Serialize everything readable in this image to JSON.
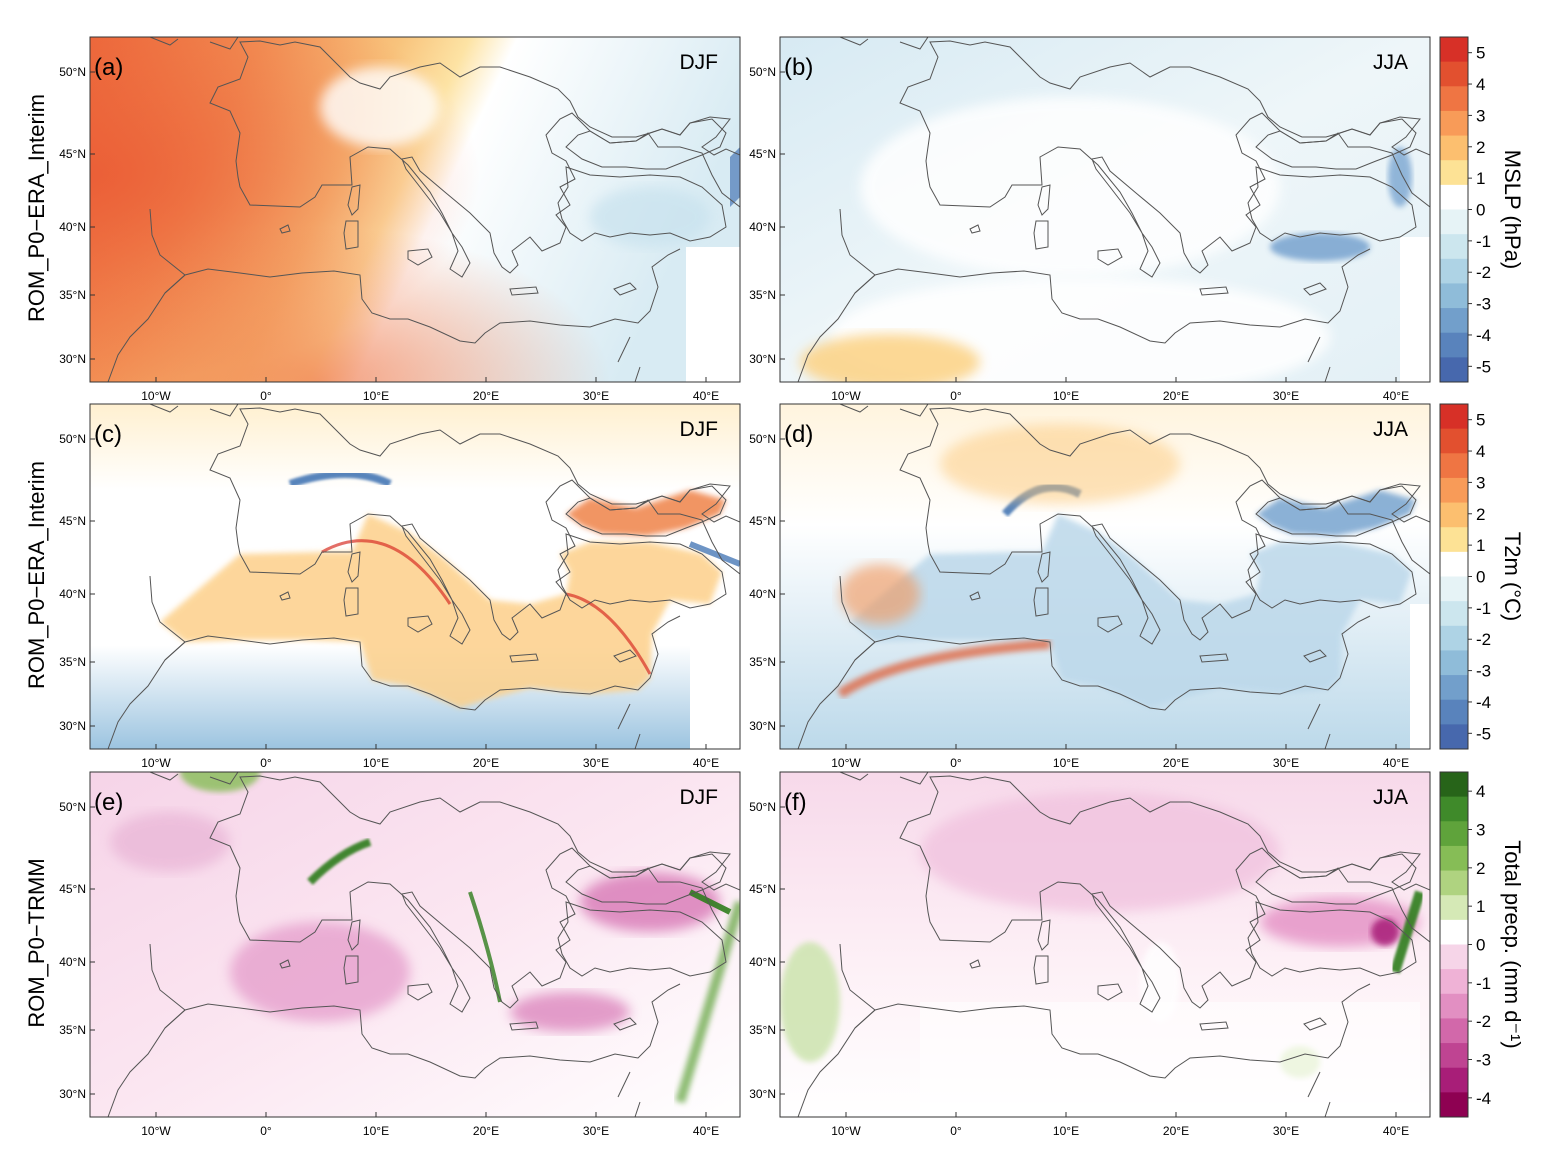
{
  "rows": [
    {
      "ylabel": "ROM_P0−ERA_Interim"
    },
    {
      "ylabel": "ROM_P0−ERA_Interim"
    },
    {
      "ylabel": "ROM_P0−TRMM"
    }
  ],
  "panels": [
    {
      "label": "(a)",
      "season": "DJF",
      "variable": "mslp",
      "pattern": "mslp_djf"
    },
    {
      "label": "(b)",
      "season": "JJA",
      "variable": "mslp",
      "pattern": "mslp_jja"
    },
    {
      "label": "(c)",
      "season": "DJF",
      "variable": "t2m",
      "pattern": "t2m_djf"
    },
    {
      "label": "(d)",
      "season": "JJA",
      "variable": "t2m",
      "pattern": "t2m_jja"
    },
    {
      "label": "(e)",
      "season": "DJF",
      "variable": "precip",
      "pattern": "pr_djf"
    },
    {
      "label": "(f)",
      "season": "JJA",
      "variable": "precip",
      "pattern": "pr_jja"
    }
  ],
  "lon_ticks": [
    "10°W",
    "0°",
    "10°E",
    "20°E",
    "30°E",
    "40°E"
  ],
  "lat_ticks": [
    "50°N",
    "45°N",
    "40°N",
    "35°N",
    "30°N"
  ],
  "colorbars": [
    {
      "title": "MSLP (hPa)",
      "ticks": [
        "5",
        "4",
        "3",
        "2",
        "1",
        "0",
        "-1",
        "-2",
        "-3",
        "-4",
        "-5"
      ],
      "colors": [
        "#d73027",
        "#e2502f",
        "#ef7543",
        "#f89b58",
        "#fcbf6f",
        "#fde295",
        "#ffffff",
        "#e6f3f6",
        "#cce6ee",
        "#aed3e5",
        "#8fbcd9",
        "#729fcb",
        "#5983bc",
        "#4768ad"
      ]
    },
    {
      "title": "T2m (°C)",
      "ticks": [
        "5",
        "4",
        "3",
        "2",
        "1",
        "0",
        "-1",
        "-2",
        "-3",
        "-4",
        "-5"
      ],
      "colors": [
        "#d73027",
        "#e2502f",
        "#ef7543",
        "#f89b58",
        "#fcbf6f",
        "#fde295",
        "#ffffff",
        "#e6f3f6",
        "#cce6ee",
        "#aed3e5",
        "#8fbcd9",
        "#729fcb",
        "#5983bc",
        "#4768ad"
      ]
    },
    {
      "title": "Total precp. (mm d⁻¹)",
      "ticks": [
        "4",
        "3",
        "2",
        "1",
        "0",
        "-1",
        "-2",
        "-3",
        "-4"
      ],
      "colors": [
        "#276419",
        "#3f8a2a",
        "#5fa33b",
        "#86bd56",
        "#afd380",
        "#d5e9b6",
        "#ffffff",
        "#f6d5e8",
        "#efb2d6",
        "#e28fc2",
        "#d268aa",
        "#bf4492",
        "#a81e78",
        "#8e0152"
      ]
    }
  ],
  "colors": {
    "positive": "#f07840",
    "negative": "#4a78b5",
    "green": "#2f7d1d",
    "magenta": "#c0288c"
  }
}
